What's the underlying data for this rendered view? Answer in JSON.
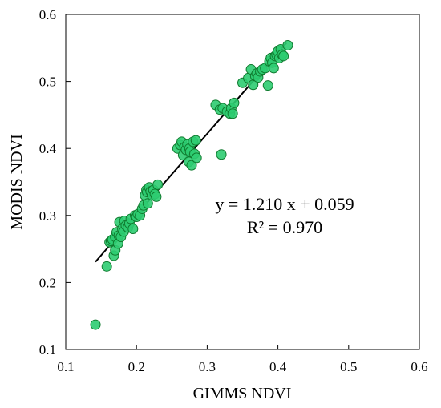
{
  "chart_data": {
    "type": "scatter",
    "title": "",
    "xlabel": "GIMMS NDVI",
    "ylabel": "MODIS NDVI",
    "xlim": [
      0.1,
      0.6
    ],
    "ylim": [
      0.1,
      0.6
    ],
    "x_ticks": [
      "0.1",
      "0.2",
      "0.3",
      "0.4",
      "0.5",
      "0.6"
    ],
    "y_ticks": [
      "0.1",
      "0.2",
      "0.3",
      "0.4",
      "0.5",
      "0.6"
    ],
    "grid": false,
    "legend": "none",
    "marker_fill": "#2ecc71",
    "marker_edge": "#0f7a2e",
    "line_color": "#000000",
    "annotations": {
      "equation": "y = 1.210 x + 0.059",
      "r2": "R² = 0.970"
    },
    "fit": {
      "slope": 1.21,
      "intercept": 0.059,
      "x_range": [
        0.142,
        0.412
      ]
    },
    "points": [
      [
        0.142,
        0.137
      ],
      [
        0.158,
        0.224
      ],
      [
        0.162,
        0.26
      ],
      [
        0.164,
        0.262
      ],
      [
        0.166,
        0.264
      ],
      [
        0.168,
        0.24
      ],
      [
        0.17,
        0.248
      ],
      [
        0.17,
        0.268
      ],
      [
        0.172,
        0.275
      ],
      [
        0.174,
        0.258
      ],
      [
        0.175,
        0.27
      ],
      [
        0.176,
        0.29
      ],
      [
        0.178,
        0.268
      ],
      [
        0.18,
        0.28
      ],
      [
        0.182,
        0.276
      ],
      [
        0.183,
        0.292
      ],
      [
        0.185,
        0.285
      ],
      [
        0.188,
        0.282
      ],
      [
        0.19,
        0.288
      ],
      [
        0.192,
        0.295
      ],
      [
        0.195,
        0.28
      ],
      [
        0.198,
        0.3
      ],
      [
        0.2,
        0.298
      ],
      [
        0.202,
        0.302
      ],
      [
        0.205,
        0.3
      ],
      [
        0.208,
        0.31
      ],
      [
        0.21,
        0.315
      ],
      [
        0.212,
        0.33
      ],
      [
        0.214,
        0.338
      ],
      [
        0.215,
        0.335
      ],
      [
        0.216,
        0.318
      ],
      [
        0.218,
        0.342
      ],
      [
        0.22,
        0.336
      ],
      [
        0.222,
        0.33
      ],
      [
        0.224,
        0.338
      ],
      [
        0.226,
        0.332
      ],
      [
        0.228,
        0.328
      ],
      [
        0.23,
        0.346
      ],
      [
        0.258,
        0.4
      ],
      [
        0.262,
        0.405
      ],
      [
        0.264,
        0.41
      ],
      [
        0.266,
        0.39
      ],
      [
        0.268,
        0.402
      ],
      [
        0.27,
        0.398
      ],
      [
        0.272,
        0.406
      ],
      [
        0.274,
        0.38
      ],
      [
        0.275,
        0.4
      ],
      [
        0.276,
        0.395
      ],
      [
        0.278,
        0.375
      ],
      [
        0.28,
        0.41
      ],
      [
        0.282,
        0.392
      ],
      [
        0.284,
        0.412
      ],
      [
        0.285,
        0.386
      ],
      [
        0.32,
        0.391
      ],
      [
        0.312,
        0.465
      ],
      [
        0.318,
        0.458
      ],
      [
        0.322,
        0.46
      ],
      [
        0.328,
        0.455
      ],
      [
        0.332,
        0.452
      ],
      [
        0.334,
        0.46
      ],
      [
        0.336,
        0.452
      ],
      [
        0.338,
        0.468
      ],
      [
        0.35,
        0.498
      ],
      [
        0.358,
        0.505
      ],
      [
        0.362,
        0.518
      ],
      [
        0.365,
        0.495
      ],
      [
        0.368,
        0.508
      ],
      [
        0.37,
        0.512
      ],
      [
        0.372,
        0.506
      ],
      [
        0.375,
        0.515
      ],
      [
        0.378,
        0.518
      ],
      [
        0.382,
        0.52
      ],
      [
        0.386,
        0.494
      ],
      [
        0.388,
        0.53
      ],
      [
        0.39,
        0.535
      ],
      [
        0.392,
        0.528
      ],
      [
        0.394,
        0.52
      ],
      [
        0.396,
        0.538
      ],
      [
        0.398,
        0.54
      ],
      [
        0.4,
        0.545
      ],
      [
        0.402,
        0.535
      ],
      [
        0.404,
        0.548
      ],
      [
        0.406,
        0.54
      ],
      [
        0.408,
        0.538
      ],
      [
        0.414,
        0.554
      ]
    ]
  }
}
